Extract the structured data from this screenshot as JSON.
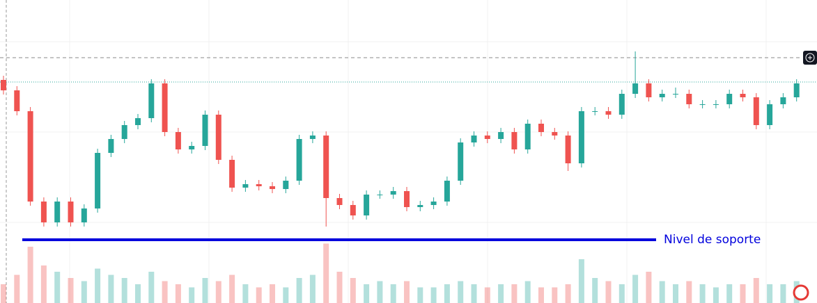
{
  "chart_data": {
    "type": "candlestick",
    "open": [
      321,
      306,
      276,
      146,
      116,
      146,
      116,
      136,
      216,
      236,
      256,
      266,
      316,
      246,
      221,
      226,
      271,
      206,
      166,
      171,
      168,
      164,
      176,
      236,
      241,
      151,
      141,
      126,
      156,
      156,
      161,
      138,
      141,
      146,
      176,
      231,
      241,
      236,
      246,
      221,
      258,
      246,
      241,
      201,
      276,
      276,
      271,
      301,
      316,
      296,
      301,
      301,
      286,
      286,
      286,
      301,
      296,
      256,
      286,
      296
    ],
    "high": [
      327,
      312,
      282,
      152,
      152,
      152,
      142,
      222,
      242,
      262,
      272,
      322,
      322,
      252,
      232,
      277,
      277,
      212,
      177,
      177,
      174,
      182,
      242,
      247,
      247,
      157,
      147,
      162,
      162,
      167,
      167,
      147,
      152,
      182,
      237,
      247,
      247,
      252,
      252,
      264,
      264,
      252,
      247,
      282,
      282,
      282,
      307,
      362,
      322,
      307,
      310,
      307,
      292,
      292,
      307,
      307,
      302,
      292,
      302,
      322
    ],
    "low": [
      300,
      270,
      140,
      110,
      110,
      110,
      110,
      130,
      210,
      230,
      250,
      260,
      240,
      215,
      215,
      220,
      200,
      160,
      160,
      162,
      158,
      158,
      170,
      230,
      110,
      135,
      120,
      120,
      150,
      150,
      132,
      132,
      135,
      140,
      170,
      225,
      230,
      230,
      215,
      215,
      240,
      235,
      190,
      195,
      270,
      265,
      265,
      295,
      290,
      290,
      295,
      280,
      280,
      280,
      280,
      290,
      250,
      250,
      280,
      290
    ],
    "close": [
      306,
      276,
      146,
      116,
      146,
      116,
      136,
      216,
      236,
      256,
      266,
      316,
      246,
      221,
      226,
      271,
      206,
      166,
      171,
      168,
      164,
      176,
      236,
      241,
      151,
      141,
      126,
      156,
      156,
      161,
      138,
      141,
      146,
      176,
      231,
      241,
      236,
      246,
      221,
      258,
      246,
      241,
      201,
      276,
      276,
      271,
      301,
      316,
      296,
      301,
      301,
      286,
      286,
      286,
      301,
      296,
      256,
      286,
      296,
      316
    ],
    "volume": [
      30,
      45,
      90,
      60,
      50,
      40,
      35,
      55,
      45,
      40,
      30,
      50,
      35,
      30,
      25,
      40,
      35,
      45,
      30,
      25,
      30,
      25,
      40,
      45,
      95,
      50,
      40,
      30,
      35,
      30,
      35,
      25,
      25,
      30,
      35,
      30,
      25,
      30,
      30,
      35,
      25,
      25,
      30,
      70,
      40,
      35,
      30,
      45,
      50,
      35,
      30,
      35,
      30,
      25,
      30,
      30,
      40,
      30,
      30,
      35
    ],
    "up_color": "#26a69a",
    "down_color": "#ef5350",
    "ylim": [
      0,
      436
    ],
    "volume_lim": [
      0,
      100
    ],
    "high_line": 353,
    "last_price_line": 318,
    "support": {
      "value": 91,
      "label": "Nivel de soporte",
      "color": "#0000dd"
    }
  }
}
